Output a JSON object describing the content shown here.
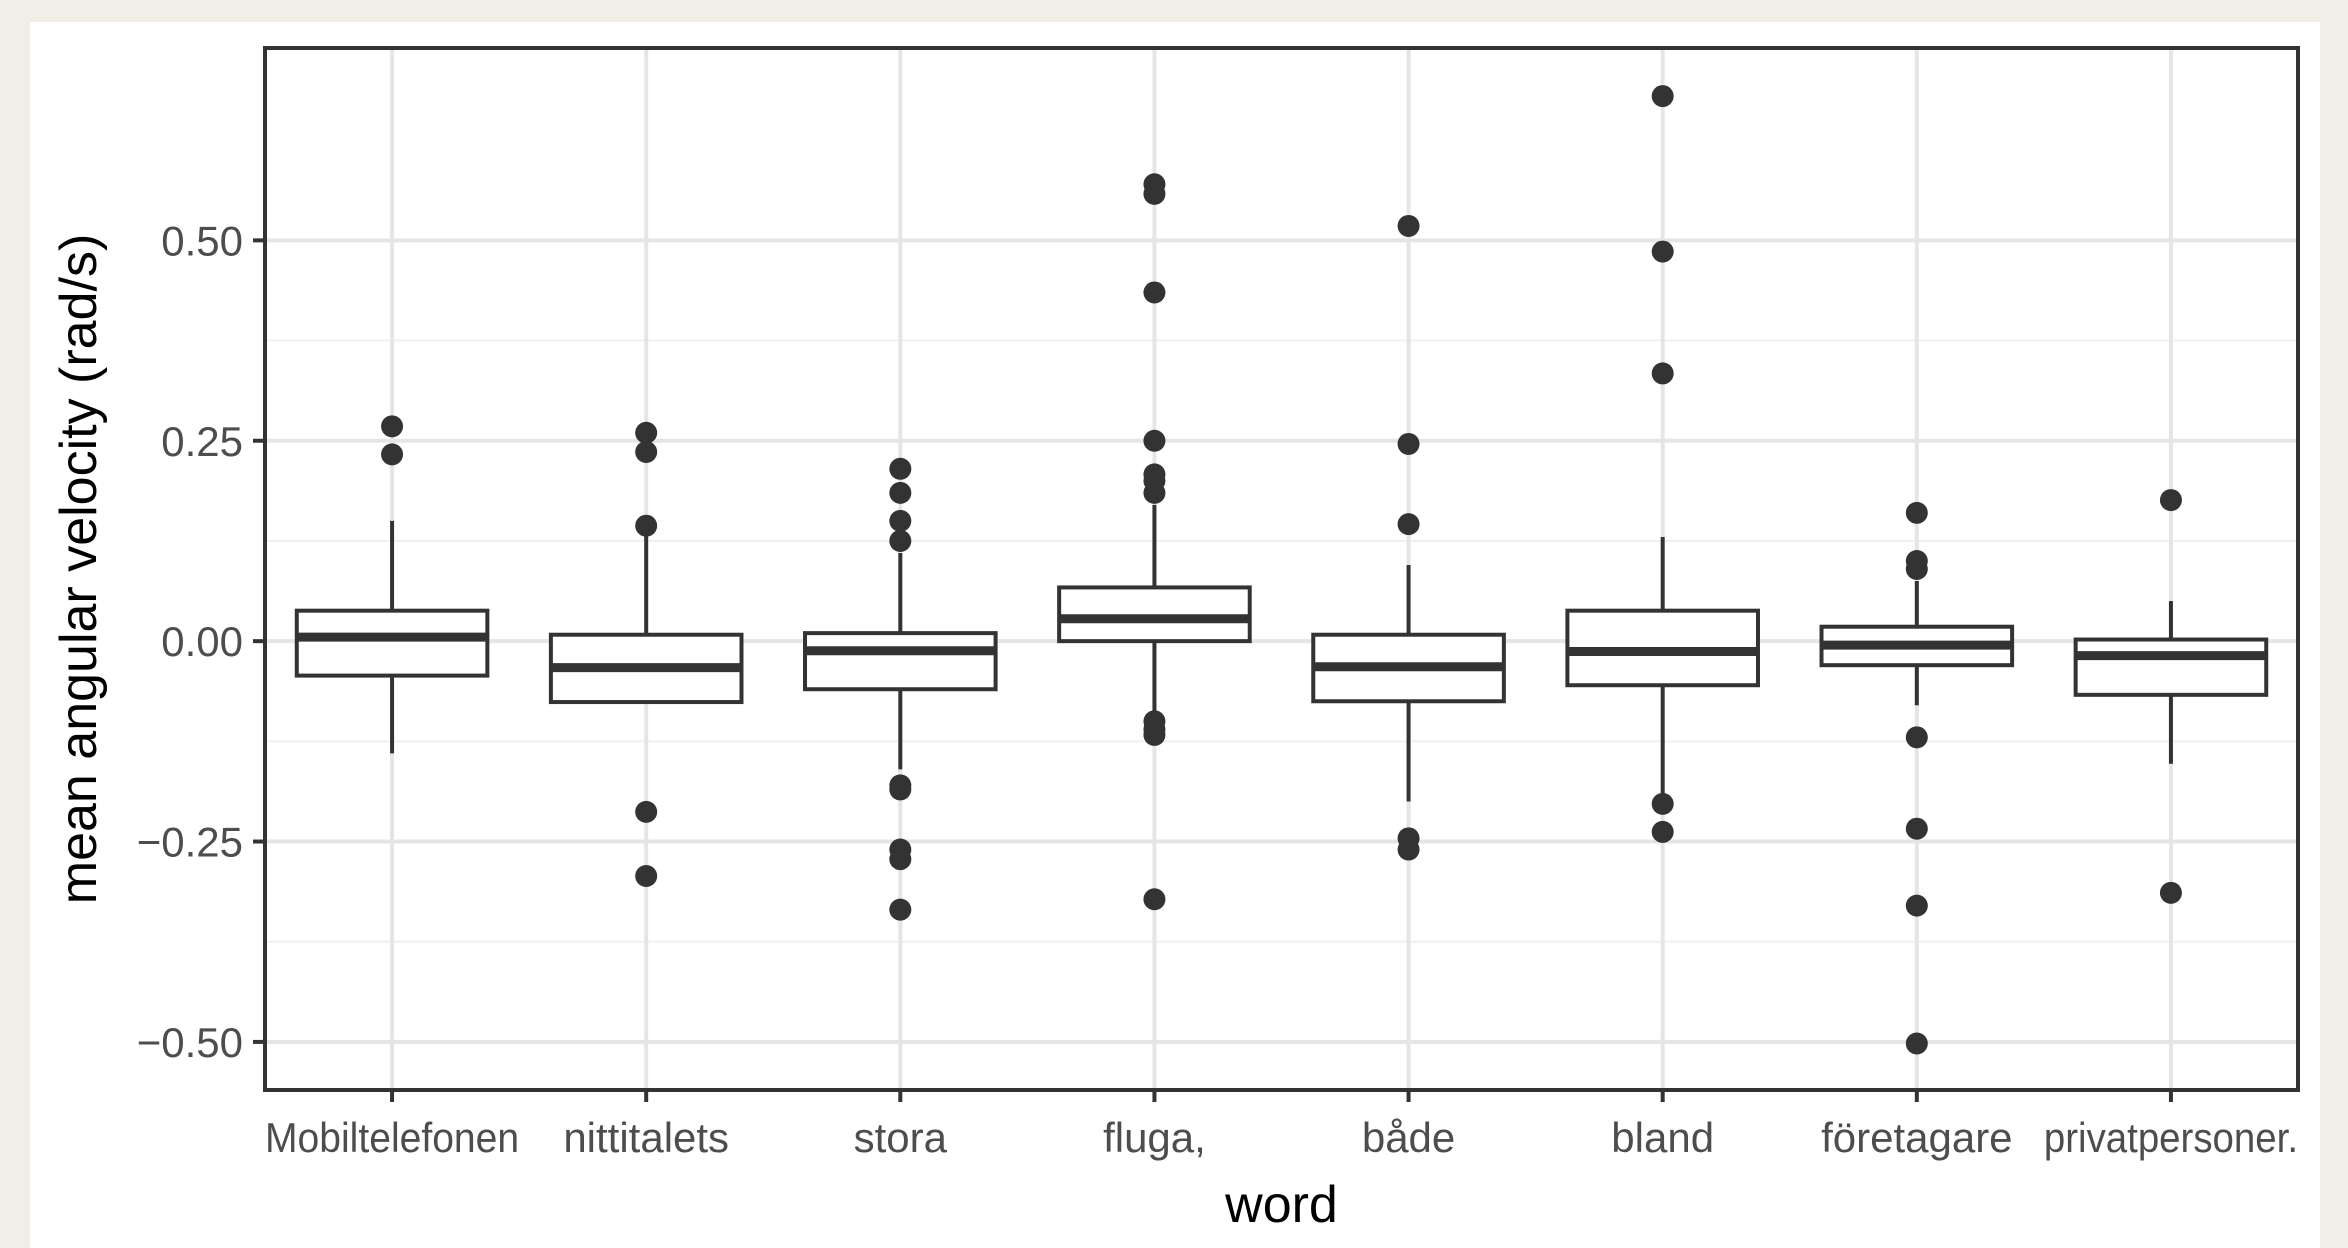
{
  "chart_data": {
    "type": "box",
    "xlabel": "word",
    "ylabel": "mean angular velocity (rad/s)",
    "categories": [
      "Mobiltelefonen",
      "nittitalets",
      "stora",
      "fluga,",
      "både",
      "bland",
      "företagare",
      "privatpersoner."
    ],
    "y_ticks": [
      {
        "value": 0.5,
        "label": "0.50"
      },
      {
        "value": 0.25,
        "label": "0.25"
      },
      {
        "value": 0.0,
        "label": "0.00"
      },
      {
        "value": -0.25,
        "label": "−0.25"
      },
      {
        "value": -0.5,
        "label": "−0.50"
      }
    ],
    "ylim": [
      -0.56,
      0.74
    ],
    "grid": true,
    "boxes": [
      {
        "category": "Mobiltelefonen",
        "whisker_low": -0.14,
        "q1": -0.043,
        "median": 0.005,
        "q3": 0.038,
        "whisker_high": 0.15,
        "outliers": [
          0.268,
          0.233
        ]
      },
      {
        "category": "nittitalets",
        "whisker_low": -0.076,
        "q1": -0.076,
        "median": -0.033,
        "q3": 0.008,
        "whisker_high": 0.135,
        "outliers": [
          0.26,
          0.236,
          0.144,
          -0.213,
          -0.293
        ]
      },
      {
        "category": "stora",
        "whisker_low": -0.16,
        "q1": -0.06,
        "median": -0.012,
        "q3": 0.01,
        "whisker_high": 0.11,
        "outliers": [
          0.215,
          0.185,
          0.15,
          0.125,
          -0.18,
          -0.185,
          -0.26,
          -0.272,
          -0.335
        ]
      },
      {
        "category": "fluga,",
        "whisker_low": -0.095,
        "q1": 0.0,
        "median": 0.028,
        "q3": 0.067,
        "whisker_high": 0.17,
        "outliers": [
          0.57,
          0.558,
          0.435,
          0.25,
          0.208,
          0.2,
          0.185,
          -0.1,
          -0.11,
          -0.117,
          -0.322
        ]
      },
      {
        "category": "både",
        "whisker_low": -0.2,
        "q1": -0.075,
        "median": -0.032,
        "q3": 0.008,
        "whisker_high": 0.095,
        "outliers": [
          0.518,
          0.246,
          0.146,
          -0.246,
          -0.26
        ]
      },
      {
        "category": "bland",
        "whisker_low": -0.2,
        "q1": -0.055,
        "median": -0.013,
        "q3": 0.038,
        "whisker_high": 0.13,
        "outliers": [
          0.68,
          0.486,
          0.334,
          -0.203,
          -0.238
        ]
      },
      {
        "category": "företagare",
        "whisker_low": -0.08,
        "q1": -0.03,
        "median": -0.005,
        "q3": 0.018,
        "whisker_high": 0.075,
        "outliers": [
          0.16,
          0.1,
          0.09,
          -0.12,
          -0.234,
          -0.33,
          -0.502
        ]
      },
      {
        "category": "privatpersoner.",
        "whisker_low": -0.153,
        "q1": -0.067,
        "median": -0.018,
        "q3": 0.002,
        "whisker_high": 0.05,
        "outliers": [
          0.176,
          -0.314
        ]
      }
    ]
  }
}
